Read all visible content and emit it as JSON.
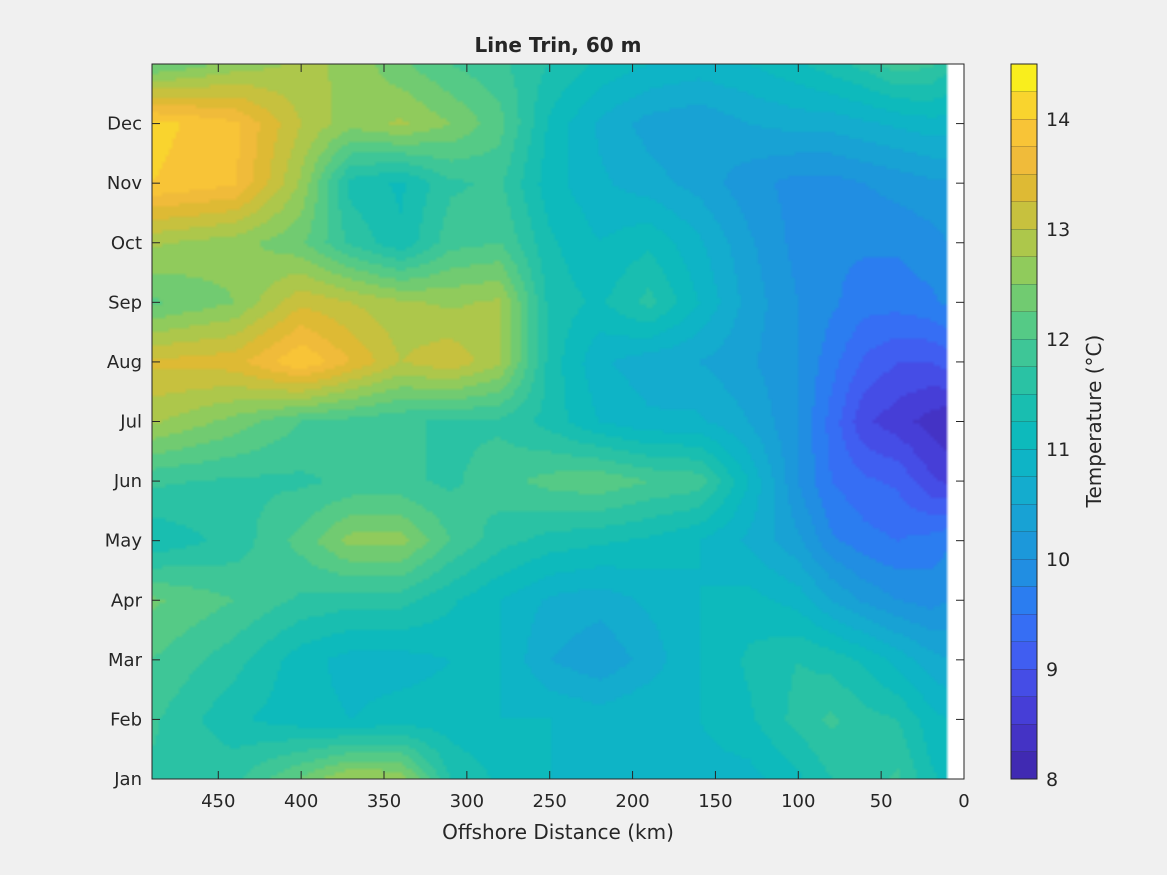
{
  "chart_data": {
    "type": "heatmap",
    "subtype": "filled-contour",
    "title": "Line Trin, 60 m",
    "xlabel": "Offshore Distance (km)",
    "ylabel": "",
    "x_direction": "reversed",
    "xlim": [
      490,
      0
    ],
    "ylim": [
      "Jan",
      "Jan (next year)"
    ],
    "x_ticks": [
      450,
      400,
      350,
      300,
      250,
      200,
      150,
      100,
      50,
      0
    ],
    "x_tick_labels": [
      "450",
      "400",
      "350",
      "300",
      "250",
      "200",
      "150",
      "100",
      "50",
      "0"
    ],
    "y_tick_labels": [
      "Jan",
      "Feb",
      "Mar",
      "Apr",
      "May",
      "Jun",
      "Jul",
      "Aug",
      "Sep",
      "Oct",
      "Nov",
      "Dec"
    ],
    "data_xlim": [
      490,
      10
    ],
    "colorbar": {
      "label": "Temperature (°C)",
      "range": [
        8,
        14.5
      ],
      "ticks": [
        8,
        9,
        10,
        11,
        12,
        13,
        14
      ],
      "tick_labels": [
        "8",
        "9",
        "10",
        "11",
        "12",
        "13",
        "14"
      ],
      "level_step": 0.25,
      "colormap": [
        "#3e26a8",
        "#4433c6",
        "#4745e1",
        "#4060f2",
        "#2f77f5",
        "#2090e0",
        "#199fd6",
        "#13aecd",
        "#0ab9bf",
        "#1cbfad",
        "#39c59a",
        "#5ccb80",
        "#8ccb5e",
        "#b8c645",
        "#dcba34",
        "#f8bb3c",
        "#f9d32e",
        "#f9fb15"
      ]
    },
    "grid": false,
    "temperature_grid": {
      "x_km": [
        490,
        440,
        400,
        370,
        340,
        310,
        280,
        250,
        220,
        190,
        160,
        130,
        100,
        80,
        60,
        40,
        20,
        10
      ],
      "y_month": [
        "Jan",
        "Feb",
        "Mar",
        "Apr",
        "May",
        "Jun",
        "Jul",
        "Aug",
        "Sep",
        "Oct",
        "Nov",
        "Dec",
        "Jan (next year)"
      ],
      "values": [
        [
          11.7,
          11.7,
          12.3,
          12.8,
          12.7,
          11.5,
          11.2,
          11.0,
          11.0,
          11.0,
          10.9,
          10.9,
          11.2,
          11.5,
          11.6,
          11.8,
          11.3,
          11.2
        ],
        [
          11.8,
          11.3,
          11.1,
          11.0,
          11.1,
          11.1,
          11.0,
          11.0,
          10.9,
          11.0,
          11.0,
          11.2,
          11.6,
          11.8,
          11.6,
          11.5,
          11.1,
          11.0
        ],
        [
          12.0,
          11.6,
          11.1,
          10.9,
          10.9,
          11.0,
          11.0,
          10.5,
          10.3,
          10.6,
          11.0,
          11.3,
          11.5,
          11.4,
          11.2,
          10.9,
          10.6,
          10.5
        ],
        [
          12.3,
          12.0,
          11.7,
          11.6,
          11.6,
          11.3,
          11.0,
          10.7,
          10.6,
          10.8,
          11.0,
          11.1,
          10.9,
          10.5,
          10.2,
          10.0,
          9.9,
          10.0
        ],
        [
          11.3,
          11.6,
          12.1,
          12.6,
          12.6,
          12.0,
          11.6,
          11.4,
          11.3,
          11.2,
          11.0,
          10.7,
          10.3,
          9.8,
          9.6,
          9.5,
          9.6,
          9.7
        ],
        [
          11.8,
          11.7,
          11.7,
          11.8,
          11.8,
          11.7,
          11.9,
          12.1,
          12.2,
          12.0,
          11.9,
          11.0,
          10.0,
          9.5,
          9.3,
          9.2,
          8.8,
          8.7
        ],
        [
          12.8,
          12.4,
          12.0,
          11.9,
          11.8,
          11.7,
          11.7,
          11.4,
          11.0,
          10.8,
          10.8,
          10.5,
          10.0,
          9.4,
          8.8,
          8.6,
          8.4,
          8.3
        ],
        [
          13.3,
          13.4,
          14.0,
          13.5,
          13.0,
          13.2,
          12.8,
          11.4,
          10.8,
          10.6,
          10.5,
          10.3,
          10.0,
          9.6,
          9.2,
          9.0,
          9.0,
          9.1
        ],
        [
          12.2,
          12.5,
          13.2,
          13.0,
          12.8,
          12.7,
          12.8,
          11.4,
          11.2,
          11.6,
          11.0,
          10.4,
          10.0,
          9.8,
          9.6,
          9.6,
          9.7,
          9.8
        ],
        [
          12.8,
          12.6,
          12.3,
          11.7,
          11.3,
          11.9,
          12.0,
          11.3,
          11.0,
          11.2,
          10.8,
          10.3,
          9.9,
          9.8,
          9.8,
          9.8,
          9.9,
          10.0
        ],
        [
          14.0,
          13.8,
          12.7,
          11.4,
          11.2,
          11.7,
          11.8,
          11.1,
          10.8,
          10.6,
          10.4,
          10.1,
          9.9,
          9.9,
          10.0,
          10.1,
          10.2,
          10.2
        ],
        [
          14.1,
          13.8,
          13.0,
          12.6,
          12.8,
          12.5,
          12.1,
          11.2,
          10.7,
          10.4,
          10.3,
          10.5,
          10.6,
          10.6,
          10.7,
          10.8,
          10.9,
          10.9
        ],
        [
          12.2,
          12.6,
          12.8,
          12.7,
          12.3,
          12.0,
          11.8,
          11.5,
          11.2,
          11.0,
          10.9,
          11.0,
          11.2,
          11.4,
          11.6,
          11.9,
          11.8,
          11.6
        ]
      ]
    }
  }
}
